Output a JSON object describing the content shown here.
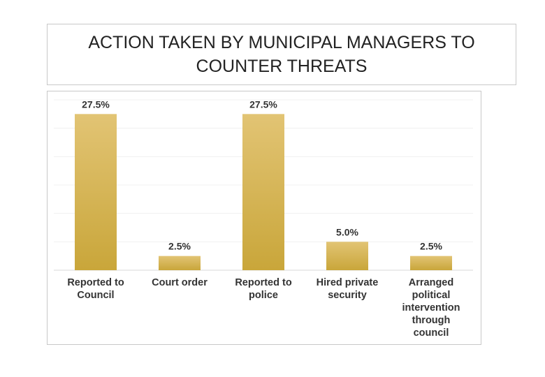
{
  "chart_data": {
    "type": "bar",
    "title": "ACTION TAKEN BY MUNICIPAL MANAGERS TO COUNTER THREATS",
    "categories": [
      "Reported to Council",
      "Court order",
      "Reported to police",
      "Hired private security",
      "Arranged political intervention through council"
    ],
    "values": [
      27.5,
      2.5,
      27.5,
      5.0,
      2.5
    ],
    "value_labels": [
      "27.5%",
      "2.5%",
      "27.5%",
      "5.0%",
      "2.5%"
    ],
    "color": "#d4b34e",
    "ylim": [
      0,
      30
    ],
    "yticks": [
      0,
      5,
      10,
      15,
      20,
      25,
      30
    ],
    "grid": true
  }
}
